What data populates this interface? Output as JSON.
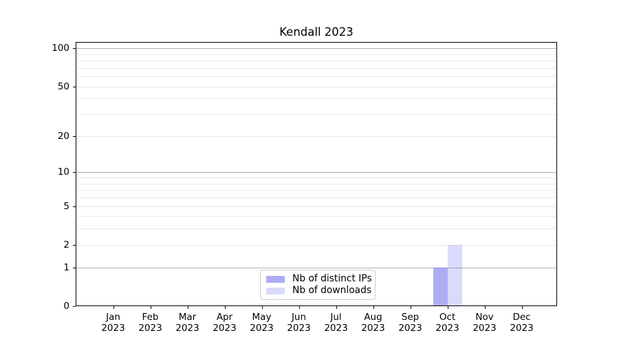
{
  "title": "Kendall 2023",
  "legend": {
    "items": [
      {
        "label": "Nb of distinct IPs",
        "color": "rgba(123,123,238,0.62)"
      },
      {
        "label": "Nb of downloads",
        "color": "rgba(123,123,238,0.28)"
      }
    ],
    "position": "lower center"
  },
  "colors": {
    "bar_base": "#7b7bee",
    "distinct_ips_solid": "#adadf4",
    "downloads_solid": "#dadaf9",
    "major_grid": "#b0b0b0",
    "minor_grid": "#e7e7e7",
    "spine": "#000000",
    "background": "#ffffff"
  },
  "chart_data": {
    "type": "bar",
    "title": "Kendall 2023",
    "categories": [
      "Jan 2023",
      "Feb 2023",
      "Mar 2023",
      "Apr 2023",
      "May 2023",
      "Jun 2023",
      "Jul 2023",
      "Aug 2023",
      "Sep 2023",
      "Oct 2023",
      "Nov 2023",
      "Dec 2023"
    ],
    "series": [
      {
        "name": "Nb of distinct IPs",
        "color": "rgba(123,123,238,0.62)",
        "values": [
          0,
          0,
          0,
          0,
          0,
          0,
          0,
          0,
          0,
          1,
          0,
          0
        ]
      },
      {
        "name": "Nb of downloads",
        "color": "rgba(123,123,238,0.28)",
        "values": [
          0,
          0,
          0,
          0,
          0,
          0,
          0,
          0,
          0,
          2,
          0,
          0
        ]
      }
    ],
    "xlabel": "",
    "ylabel": "",
    "yscale": "log1p",
    "ylim": [
      0,
      112
    ],
    "grid": "horizontal",
    "legend_position": "lower center",
    "yticks": [
      {
        "value": 0,
        "label": "0",
        "major": true
      },
      {
        "value": 1,
        "label": "1",
        "major": true
      },
      {
        "value": 2,
        "label": "2",
        "major": false
      },
      {
        "value": 5,
        "label": "5",
        "major": false
      },
      {
        "value": 10,
        "label": "10",
        "major": true
      },
      {
        "value": 20,
        "label": "20",
        "major": false
      },
      {
        "value": 50,
        "label": "50",
        "major": false
      },
      {
        "value": 100,
        "label": "100",
        "major": true
      }
    ],
    "major_grid_values": [
      1,
      10,
      100
    ],
    "minor_grid_values": [
      2,
      3,
      4,
      5,
      6,
      7,
      8,
      9,
      20,
      30,
      40,
      50,
      60,
      70,
      80,
      90
    ]
  },
  "xaxis": {
    "months": [
      {
        "month": "Jan",
        "year": "2023"
      },
      {
        "month": "Feb",
        "year": "2023"
      },
      {
        "month": "Mar",
        "year": "2023"
      },
      {
        "month": "Apr",
        "year": "2023"
      },
      {
        "month": "May",
        "year": "2023"
      },
      {
        "month": "Jun",
        "year": "2023"
      },
      {
        "month": "Jul",
        "year": "2023"
      },
      {
        "month": "Aug",
        "year": "2023"
      },
      {
        "month": "Sep",
        "year": "2023"
      },
      {
        "month": "Oct",
        "year": "2023"
      },
      {
        "month": "Nov",
        "year": "2023"
      },
      {
        "month": "Dec",
        "year": "2023"
      }
    ]
  }
}
